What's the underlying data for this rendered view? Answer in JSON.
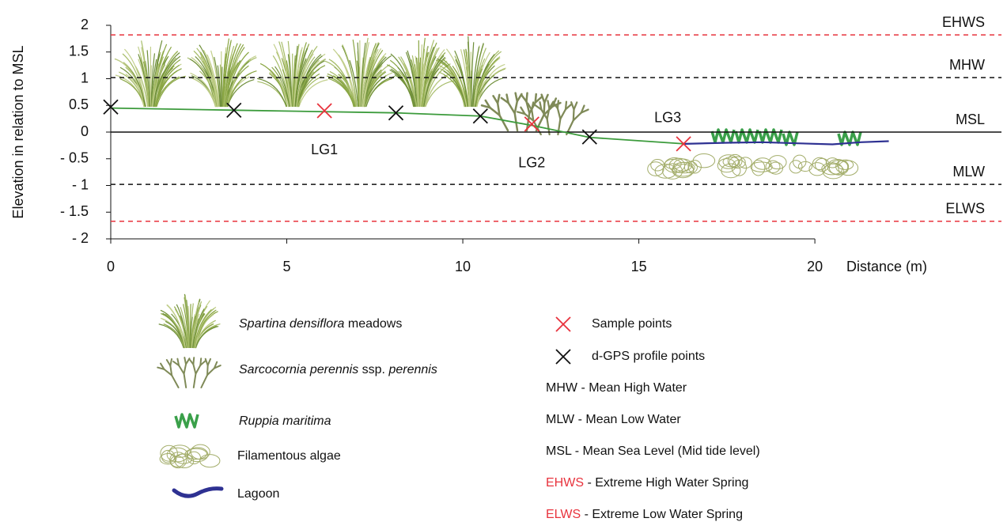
{
  "chart_data": {
    "type": "line",
    "y_label": "Elevation in relation to MSL",
    "x_label": "Distance (m)",
    "xlim": [
      0,
      25.3
    ],
    "ylim": [
      -2,
      2
    ],
    "xticks": [
      0,
      5,
      10,
      15,
      20
    ],
    "yticks": [
      {
        "value": -2,
        "label": "- 2"
      },
      {
        "value": -1.5,
        "label": "- 1.5"
      },
      {
        "value": -1,
        "label": "- 1"
      },
      {
        "value": -0.5,
        "label": "- 0.5"
      },
      0,
      0.5,
      1,
      1.5,
      2
    ],
    "levels": [
      {
        "label": "EHWS",
        "definition": "- Extreme High Water Spring",
        "value": 1.82,
        "color": "#e8333d",
        "style": "dashed"
      },
      {
        "label": "MHW",
        "definition": "- Mean High Water",
        "value": 1.02,
        "color": "#111111",
        "style": "dashed"
      },
      {
        "label": "MSL",
        "definition": "- Mean Sea Level (Mid tide level)",
        "value": 0,
        "color": "#111111",
        "style": "solid"
      },
      {
        "label": "MLW",
        "definition": "- Mean Low Water",
        "value": -0.98,
        "color": "#111111",
        "style": "dashed"
      },
      {
        "label": "ELWS",
        "definition": "- Extreme Low Water Spring",
        "value": -1.67,
        "color": "#e8333d",
        "style": "dashed"
      }
    ],
    "profile": {
      "color": "#3c9b3c",
      "x": [
        0,
        3.5,
        8.1,
        10.5,
        12,
        13.6,
        16.3
      ],
      "values": [
        0.45,
        0.41,
        0.36,
        0.3,
        0.12,
        -0.1,
        -0.22
      ]
    },
    "lagoon": {
      "name": "Lagoon",
      "color": "#2e3192",
      "x": [
        16.3,
        17.5,
        18.5,
        19.5,
        20.5,
        21.3,
        22.1
      ],
      "values": [
        -0.22,
        -0.2,
        -0.19,
        -0.21,
        -0.23,
        -0.19,
        -0.17
      ]
    },
    "sample_points": {
      "name": "Sample points",
      "color": "#e8333d",
      "labels": [
        "LG1",
        "LG2",
        "LG3"
      ],
      "x": [
        6.07,
        11.96,
        16.27
      ],
      "values": [
        0.4,
        0.15,
        -0.22
      ]
    },
    "gps_points": {
      "name": "d-GPS profile points",
      "color": "#111111",
      "x": [
        0,
        3.5,
        8.1,
        10.5,
        13.6
      ],
      "values": [
        0.47,
        0.41,
        0.36,
        0.3,
        -0.09
      ]
    },
    "vegetation_legend": [
      {
        "italic": "Spartina densiflora",
        "text": "meadows"
      },
      {
        "italic": "Sarcocornia perennis",
        "text": "ssp.",
        "italic2": "perennis"
      },
      {
        "italic": "Ruppia maritima"
      },
      {
        "text": "Filamentous algae"
      }
    ]
  }
}
